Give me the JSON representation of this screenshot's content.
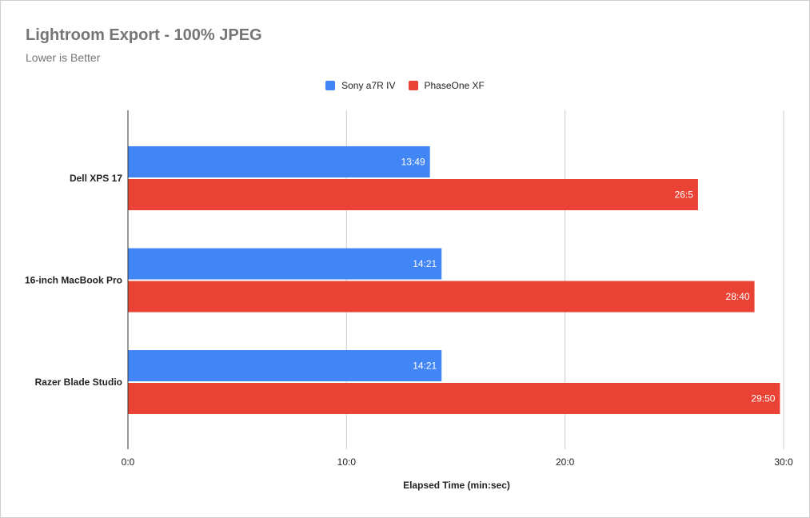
{
  "chart_data": {
    "type": "bar",
    "orientation": "horizontal",
    "title": "Lightroom Export - 100% JPEG",
    "subtitle": "Lower is Better",
    "xlabel": "Elapsed Time (min:sec)",
    "ylabel": "",
    "categories": [
      "Dell XPS 17",
      "16-inch MacBook Pro",
      "Razer Blade Studio"
    ],
    "series": [
      {
        "name": "Sony a7R IV",
        "color": "#4285f4",
        "values": [
          13.817,
          14.35,
          14.35
        ],
        "labels": [
          "13:49",
          "14:21",
          "14:21"
        ]
      },
      {
        "name": "PhaseOne XF",
        "color": "#ea4335",
        "values": [
          26.083,
          28.667,
          29.833
        ],
        "labels": [
          "26:5",
          "28:40",
          "29:50"
        ]
      }
    ],
    "xlim": [
      0,
      30
    ],
    "xticks": [
      0,
      10,
      20,
      30
    ],
    "xtick_labels": [
      "0:0",
      "10:0",
      "20:0",
      "30:0"
    ],
    "grid": true,
    "legend_position": "top-center"
  }
}
